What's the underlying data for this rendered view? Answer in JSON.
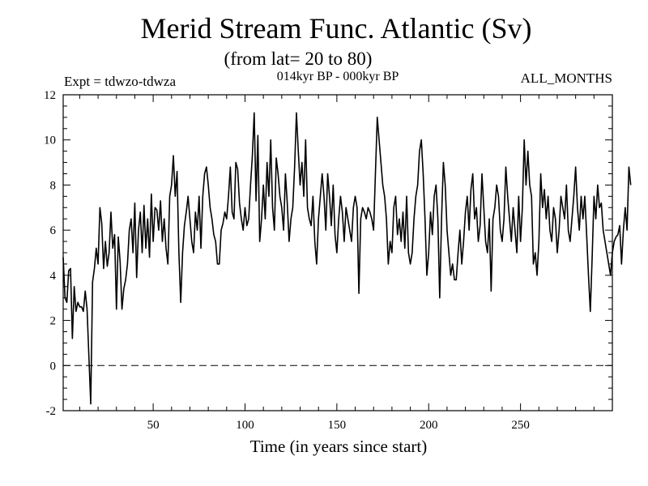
{
  "header": {
    "title": "Merid Stream Func. Atlantic (Sv)",
    "subtitle": "(from lat= 20 to 80)",
    "expt": "Expt = tdwzo-tdwza",
    "period": "014kyr BP - 000kyr BP",
    "months": "ALL_MONTHS"
  },
  "chart_data": {
    "type": "line",
    "title": "Merid Stream Func. Atlantic (Sv)",
    "xlabel": "Time (in years since start)",
    "ylabel": "",
    "xlim": [
      1,
      300
    ],
    "ylim": [
      -2,
      12
    ],
    "x_ticks": [
      50,
      100,
      150,
      200,
      250
    ],
    "y_ticks": [
      -2,
      0,
      2,
      4,
      6,
      8,
      10,
      12
    ],
    "reference_line": {
      "y": 0,
      "style": "dashed"
    },
    "grid": false,
    "series": [
      {
        "x_start": 1,
        "x_step": 1,
        "values": [
          4.8,
          3.0,
          2.8,
          4.2,
          4.3,
          1.2,
          3.5,
          2.4,
          2.8,
          2.6,
          2.6,
          2.4,
          3.3,
          2.5,
          0.4,
          -1.7,
          3.7,
          4.3,
          5.2,
          4.5,
          7.0,
          6.3,
          4.3,
          5.5,
          4.4,
          5.0,
          6.8,
          5.2,
          5.8,
          2.5,
          5.7,
          4.6,
          2.5,
          3.4,
          3.8,
          4.5,
          6.0,
          6.5,
          5.0,
          7.2,
          3.9,
          6.0,
          6.8,
          5.0,
          7.1,
          5.2,
          6.5,
          4.8,
          7.6,
          5.5,
          7.0,
          6.9,
          6.0,
          7.3,
          5.5,
          6.5,
          5.2,
          4.5,
          7.5,
          8.0,
          9.3,
          7.5,
          8.6,
          5.0,
          2.8,
          5.0,
          6.2,
          6.8,
          7.5,
          6.5,
          5.5,
          5.0,
          6.8,
          6.0,
          7.5,
          5.2,
          7.5,
          8.5,
          8.8,
          8.0,
          7.0,
          6.5,
          5.8,
          5.5,
          4.5,
          4.5,
          6.0,
          6.3,
          6.8,
          6.5,
          7.5,
          8.8,
          6.8,
          6.5,
          9.0,
          8.7,
          7.2,
          6.5,
          6.0,
          7.0,
          6.2,
          6.5,
          8.0,
          9.3,
          11.2,
          7.3,
          10.2,
          5.5,
          6.5,
          8.0,
          6.5,
          9.0,
          7.5,
          10.0,
          7.0,
          6.0,
          9.2,
          8.5,
          7.5,
          7.0,
          6.0,
          8.5,
          7.2,
          5.5,
          6.5,
          7.0,
          8.8,
          11.2,
          9.5,
          8.0,
          9.0,
          7.5,
          10.0,
          7.0,
          6.5,
          6.2,
          7.5,
          5.5,
          4.5,
          6.5,
          7.5,
          8.5,
          7.5,
          6.0,
          8.5,
          7.5,
          6.2,
          8.0,
          5.8,
          5.0,
          6.5,
          7.5,
          6.8,
          5.5,
          7.0,
          6.5,
          6.0,
          5.5,
          7.0,
          7.5,
          7.0,
          3.2,
          6.5,
          7.0,
          6.8,
          6.5,
          7.0,
          6.8,
          6.5,
          6.0,
          8.5,
          11.0,
          10.0,
          9.0,
          8.0,
          7.5,
          6.5,
          4.5,
          5.5,
          5.0,
          7.0,
          7.5,
          5.8,
          6.5,
          5.5,
          6.8,
          5.2,
          7.5,
          5.0,
          4.5,
          5.0,
          6.5,
          7.5,
          8.0,
          9.5,
          10.0,
          8.5,
          6.5,
          4.0,
          5.0,
          6.8,
          5.8,
          7.5,
          8.0,
          6.5,
          3.0,
          6.5,
          9.0,
          8.0,
          6.0,
          5.0,
          4.0,
          4.5,
          3.8,
          3.8,
          5.0,
          6.0,
          4.5,
          5.5,
          6.8,
          7.5,
          6.0,
          7.8,
          8.5,
          6.5,
          7.0,
          5.5,
          6.2,
          8.5,
          7.0,
          5.5,
          5.0,
          6.5,
          3.3,
          6.5,
          7.0,
          8.0,
          7.5,
          6.0,
          5.5,
          6.5,
          8.8,
          7.5,
          6.5,
          5.5,
          7.0,
          6.0,
          5.0,
          7.5,
          5.5,
          7.0,
          10.0,
          8.0,
          9.5,
          8.0,
          7.5,
          4.5,
          5.0,
          4.0,
          5.5,
          8.5,
          7.0,
          7.8,
          6.5,
          7.5,
          6.0,
          5.5,
          7.0,
          6.5,
          5.0,
          6.0,
          7.5,
          7.0,
          6.5,
          8.0,
          6.0,
          5.5,
          6.5,
          7.5,
          8.8,
          7.0,
          6.0,
          7.5,
          6.5,
          7.5,
          5.8,
          4.0,
          2.4,
          4.8,
          7.5,
          6.5,
          8.0,
          7.0,
          7.2,
          6.0,
          5.5,
          5.0,
          4.5,
          4.0,
          5.0,
          5.5,
          5.7,
          5.8,
          6.2,
          4.5,
          6.0,
          7.0,
          6.0,
          8.8,
          8.0
        ]
      }
    ]
  }
}
